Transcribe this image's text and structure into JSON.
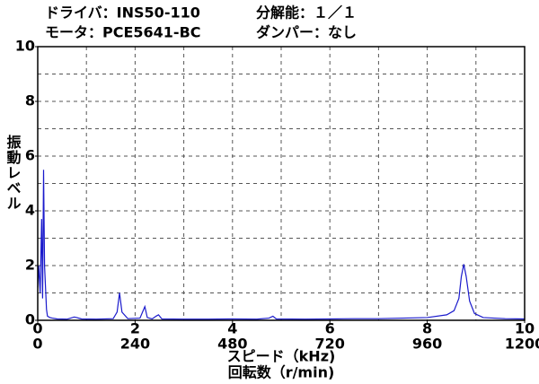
{
  "chart_data": {
    "type": "line",
    "header": [
      "ドライバ：INS50-110",
      "分解能：１／１",
      "モータ：PCE5641-BC",
      "ダンパー：なし"
    ],
    "ylabel": "振動レベル",
    "xlabel": "スピード（kHz)",
    "x2label": "回転数（r/min)",
    "xlim": [
      0,
      10
    ],
    "xticks": [
      0,
      2,
      4,
      6,
      8,
      10
    ],
    "xminor": [
      1,
      3,
      5,
      7,
      9
    ],
    "x2lim": [
      0,
      1200
    ],
    "x2ticks": [
      0,
      240,
      480,
      720,
      960,
      1200
    ],
    "ylim": [
      0,
      10
    ],
    "yticks": [
      0,
      2,
      4,
      6,
      8,
      10
    ],
    "yminor": [
      1,
      3,
      5,
      7,
      9
    ],
    "grid": true,
    "x": [
      0,
      0.02,
      0.05,
      0.08,
      0.1,
      0.12,
      0.14,
      0.16,
      0.18,
      0.2,
      0.25,
      0.3,
      0.4,
      0.6,
      0.75,
      0.8,
      0.9,
      1.2,
      1.55,
      1.63,
      1.68,
      1.73,
      1.85,
      2.1,
      2.2,
      2.25,
      2.35,
      2.43,
      2.48,
      2.55,
      3,
      3.5,
      4,
      4.5,
      4.75,
      4.83,
      4.9,
      5.5,
      6,
      6.5,
      7,
      7.5,
      8,
      8.4,
      8.55,
      8.65,
      8.7,
      8.75,
      8.8,
      8.87,
      8.97,
      9.15,
      9.6,
      10
    ],
    "series": [
      {
        "color": "#1a1acc",
        "values": [
          1.2,
          2.0,
          1.0,
          3.7,
          0.8,
          5.5,
          2.0,
          1.2,
          0.4,
          0.15,
          0.1,
          0.08,
          0.05,
          0.04,
          0.12,
          0.1,
          0.05,
          0.04,
          0.06,
          0.3,
          1.0,
          0.3,
          0.06,
          0.08,
          0.5,
          0.1,
          0.05,
          0.15,
          0.2,
          0.05,
          0.04,
          0.04,
          0.05,
          0.04,
          0.08,
          0.15,
          0.05,
          0.04,
          0.05,
          0.06,
          0.06,
          0.08,
          0.1,
          0.2,
          0.35,
          0.8,
          1.6,
          2.05,
          1.6,
          0.7,
          0.25,
          0.1,
          0.06,
          0.05
        ]
      }
    ]
  }
}
